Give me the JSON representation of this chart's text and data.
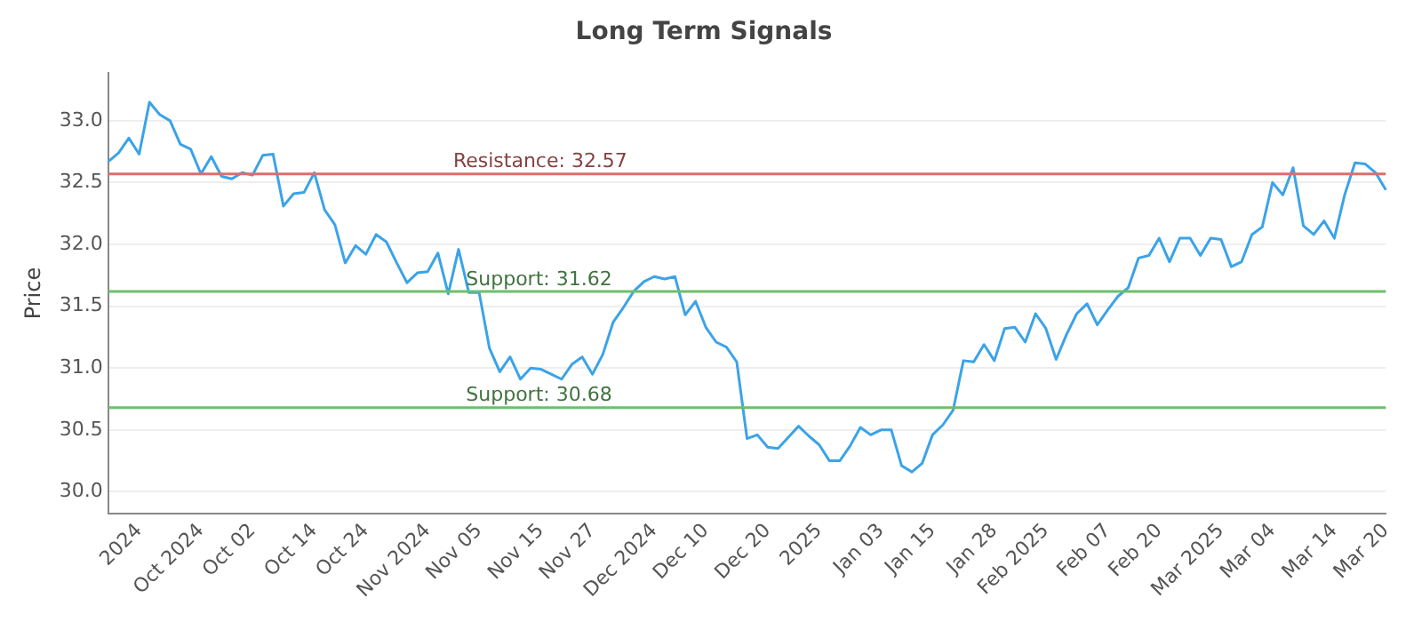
{
  "chart_data": {
    "type": "line",
    "title": "Long Term Signals",
    "ylabel": "Price",
    "categories": [
      null,
      null,
      null,
      "2024",
      null,
      null,
      null,
      null,
      null,
      "Oct 2024",
      null,
      null,
      null,
      null,
      "Oct 02",
      null,
      null,
      null,
      null,
      null,
      "Oct 14",
      null,
      null,
      null,
      null,
      "Oct 24",
      null,
      null,
      null,
      null,
      null,
      "Nov 2024",
      null,
      null,
      null,
      null,
      "Nov 05",
      null,
      null,
      null,
      null,
      null,
      "Nov 15",
      null,
      null,
      null,
      null,
      "Nov 27",
      null,
      null,
      null,
      null,
      null,
      "Dec 2024",
      null,
      null,
      null,
      null,
      "Dec 10",
      null,
      null,
      null,
      null,
      null,
      "Dec 20",
      null,
      null,
      null,
      null,
      "2025",
      null,
      null,
      null,
      null,
      null,
      "Jan 03",
      null,
      null,
      null,
      null,
      "Jan 15",
      null,
      null,
      null,
      null,
      null,
      "Jan 28",
      null,
      null,
      null,
      null,
      "Feb 2025",
      null,
      null,
      null,
      null,
      null,
      "Feb 07",
      null,
      null,
      null,
      null,
      "Feb 20",
      null,
      null,
      null,
      null,
      null,
      "Mar 2025",
      null,
      null,
      null,
      null,
      "Mar 04",
      null,
      null,
      null,
      null,
      null,
      "Mar 14",
      null,
      null,
      null,
      null,
      "Mar 20"
    ],
    "series": [
      {
        "color": "#3ba3e8",
        "values": [
          32.67,
          32.74,
          32.86,
          32.73,
          33.15,
          33.05,
          33.0,
          32.81,
          32.77,
          32.57,
          32.71,
          32.55,
          32.53,
          32.58,
          32.56,
          32.72,
          32.73,
          32.31,
          32.41,
          32.42,
          32.58,
          32.28,
          32.16,
          31.85,
          31.99,
          31.92,
          32.08,
          32.02,
          31.85,
          31.69,
          31.77,
          31.78,
          31.93,
          31.6,
          31.96,
          31.61,
          31.61,
          31.16,
          30.97,
          31.09,
          30.91,
          31.0,
          30.99,
          30.95,
          30.91,
          31.03,
          31.09,
          30.95,
          31.11,
          31.37,
          31.49,
          31.62,
          31.7,
          31.74,
          31.72,
          31.74,
          31.43,
          31.54,
          31.33,
          31.21,
          31.17,
          31.05,
          30.43,
          30.46,
          30.36,
          30.35,
          30.44,
          30.53,
          30.45,
          30.38,
          30.25,
          30.25,
          30.37,
          30.52,
          30.46,
          30.5,
          30.5,
          30.21,
          30.16,
          30.23,
          30.46,
          30.54,
          30.66,
          31.06,
          31.05,
          31.19,
          31.06,
          31.32,
          31.33,
          31.21,
          31.44,
          31.32,
          31.07,
          31.27,
          31.44,
          31.52,
          31.35,
          31.47,
          31.58,
          31.65,
          31.89,
          31.91,
          32.05,
          31.86,
          32.05,
          32.05,
          31.91,
          32.05,
          32.04,
          31.82,
          31.86,
          32.08,
          32.14,
          32.5,
          32.4,
          32.62,
          32.15,
          32.08,
          32.19,
          32.05,
          32.4,
          32.66,
          32.65,
          32.58,
          32.44
        ]
      }
    ],
    "ylim": [
      29.82,
      33.39
    ],
    "yticks": [
      {
        "value": 30,
        "label": "30.0"
      },
      {
        "value": 30.5,
        "label": "30.5"
      },
      {
        "value": 31,
        "label": "31.0"
      },
      {
        "value": 31.5,
        "label": "31.5"
      },
      {
        "value": 32,
        "label": "32.0"
      },
      {
        "value": 32.5,
        "label": "32.5"
      },
      {
        "value": 33,
        "label": "33.0"
      }
    ],
    "grid": "y",
    "legend": false,
    "marker": "none",
    "line_style": "solid",
    "ref_lines": [
      {
        "axis": "y",
        "value": 32.57,
        "label": "Resistance: 32.57",
        "color": "#e06c6c"
      },
      {
        "axis": "y",
        "value": 31.62,
        "label": "Support: 31.62",
        "color": "#6cbf6c"
      },
      {
        "axis": "y",
        "value": 30.68,
        "label": "Support: 30.68",
        "color": "#6cbf6c"
      }
    ]
  }
}
